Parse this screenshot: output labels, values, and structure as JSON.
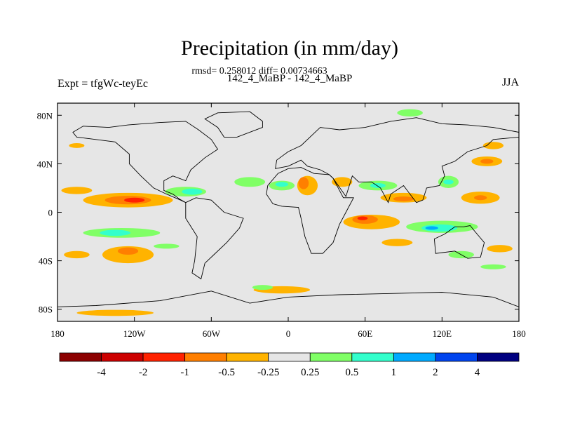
{
  "chart_data": {
    "type": "heatmap",
    "title": "Precipitation (in mm/day)",
    "stats_line": "rmsd= 0.258012 diff= 0.00734663",
    "case_line": "142_4_MaBP - 142_4_MaBP",
    "left_label": "Expt = tfgWc-teyEc",
    "right_label": "JJA",
    "lon_range": [
      -180,
      180
    ],
    "lat_range": [
      -90,
      90
    ],
    "x_ticks": [
      {
        "value": -180,
        "label": "180"
      },
      {
        "value": -120,
        "label": "120W"
      },
      {
        "value": -60,
        "label": "60W"
      },
      {
        "value": 0,
        "label": "0"
      },
      {
        "value": 60,
        "label": "60E"
      },
      {
        "value": 120,
        "label": "120E"
      },
      {
        "value": 180,
        "label": "180"
      }
    ],
    "y_ticks": [
      {
        "value": 80,
        "label": "80N"
      },
      {
        "value": 40,
        "label": "40N"
      },
      {
        "value": 0,
        "label": "0"
      },
      {
        "value": -40,
        "label": "40S"
      },
      {
        "value": -80,
        "label": "80S"
      }
    ],
    "colorbar": {
      "colors": [
        "#8b0000",
        "#cc0000",
        "#ff2200",
        "#ff7f00",
        "#ffb300",
        "#e6e6e6",
        "#80ff66",
        "#33ffcc",
        "#00aaff",
        "#0044ee",
        "#000080"
      ],
      "levels": [
        "-4",
        "-2",
        "-1",
        "-0.5",
        "-0.25",
        "0.25",
        "0.5",
        "1",
        "2",
        "4"
      ]
    },
    "anomaly_regions": [
      {
        "name": "central-pacific-itcz-dry",
        "lon": -125,
        "lat": 10,
        "rx": 35,
        "ry": 6,
        "bin": 4
      },
      {
        "name": "central-pacific-itcz-dry-core",
        "lon": -125,
        "lat": 10,
        "rx": 18,
        "ry": 3.5,
        "bin": 3
      },
      {
        "name": "central-pacific-itcz-dry-peak",
        "lon": -120,
        "lat": 10,
        "rx": 8,
        "ry": 2,
        "bin": 2
      },
      {
        "name": "east-pacific-wet",
        "lon": -80,
        "lat": 17,
        "rx": 16,
        "ry": 4,
        "bin": 6
      },
      {
        "name": "east-pacific-wet-core",
        "lon": -75,
        "lat": 17,
        "rx": 8,
        "ry": 2.5,
        "bin": 7
      },
      {
        "name": "west-pacific-itcz-dry",
        "lon": -165,
        "lat": 18,
        "rx": 12,
        "ry": 3,
        "bin": 4
      },
      {
        "name": "south-pacific-wet",
        "lon": -130,
        "lat": -17,
        "rx": 30,
        "ry": 4,
        "bin": 6
      },
      {
        "name": "south-pacific-wet-core",
        "lon": -135,
        "lat": -17,
        "rx": 12,
        "ry": 2.5,
        "bin": 7
      },
      {
        "name": "south-pacific-dry",
        "lon": -125,
        "lat": -35,
        "rx": 20,
        "ry": 7,
        "bin": 4
      },
      {
        "name": "south-pacific-dry-core",
        "lon": -125,
        "lat": -32,
        "rx": 8,
        "ry": 3,
        "bin": 3
      },
      {
        "name": "southeast-pacific-dry",
        "lon": -165,
        "lat": -35,
        "rx": 10,
        "ry": 3,
        "bin": 4
      },
      {
        "name": "southwest-pacific-wet",
        "lon": -95,
        "lat": -28,
        "rx": 10,
        "ry": 2,
        "bin": 6
      },
      {
        "name": "north-pacific-dry",
        "lon": -165,
        "lat": 55,
        "rx": 6,
        "ry": 2,
        "bin": 4
      },
      {
        "name": "subantarctic-dry",
        "lon": -5,
        "lat": -64,
        "rx": 22,
        "ry": 3,
        "bin": 4
      },
      {
        "name": "southern-ocean-dry",
        "lon": -135,
        "lat": -83,
        "rx": 30,
        "ry": 2.5,
        "bin": 4
      },
      {
        "name": "southern-ocean-wet",
        "lon": -20,
        "lat": -62,
        "rx": 8,
        "ry": 2,
        "bin": 6
      },
      {
        "name": "arctic-wet",
        "lon": 95,
        "lat": 82,
        "rx": 10,
        "ry": 3,
        "bin": 6
      },
      {
        "name": "west-africa-dry",
        "lon": 15,
        "lat": 22,
        "rx": 8,
        "ry": 8,
        "bin": 4
      },
      {
        "name": "west-africa-dry-core",
        "lon": 12,
        "lat": 24,
        "rx": 4,
        "ry": 5,
        "bin": 3
      },
      {
        "name": "sahel-wet",
        "lon": -5,
        "lat": 22,
        "rx": 10,
        "ry": 4,
        "bin": 6
      },
      {
        "name": "sahel-wet-core",
        "lon": -5,
        "lat": 23,
        "rx": 5,
        "ry": 2,
        "bin": 7
      },
      {
        "name": "atlantic-wet",
        "lon": -30,
        "lat": 25,
        "rx": 12,
        "ry": 4,
        "bin": 6
      },
      {
        "name": "arabian-dry",
        "lon": 42,
        "lat": 25,
        "rx": 8,
        "ry": 4,
        "bin": 4
      },
      {
        "name": "indian-ocean-dry",
        "lon": 65,
        "lat": -8,
        "rx": 22,
        "ry": 6,
        "bin": 4
      },
      {
        "name": "indian-ocean-dry-core",
        "lon": 60,
        "lat": -6,
        "rx": 10,
        "ry": 3.5,
        "bin": 3
      },
      {
        "name": "indian-ocean-dry-peak",
        "lon": 58,
        "lat": -5,
        "rx": 4,
        "ry": 1.5,
        "bin": 2
      },
      {
        "name": "south-asia-dry",
        "lon": 90,
        "lat": 12,
        "rx": 18,
        "ry": 4,
        "bin": 4
      },
      {
        "name": "south-asia-dry-core",
        "lon": 90,
        "lat": 11,
        "rx": 8,
        "ry": 2,
        "bin": 3
      },
      {
        "name": "india-wet",
        "lon": 70,
        "lat": 22,
        "rx": 15,
        "ry": 4,
        "bin": 6
      },
      {
        "name": "india-wet-core",
        "lon": 70,
        "lat": 22,
        "rx": 6,
        "ry": 2,
        "bin": 7
      },
      {
        "name": "maritime-continent-wet",
        "lon": 120,
        "lat": -12,
        "rx": 28,
        "ry": 5,
        "bin": 6
      },
      {
        "name": "maritime-continent-wet-core",
        "lon": 118,
        "lat": -13,
        "rx": 14,
        "ry": 3,
        "bin": 7
      },
      {
        "name": "maritime-continent-wet-peak",
        "lon": 112,
        "lat": -13,
        "rx": 5,
        "ry": 1.5,
        "bin": 8
      },
      {
        "name": "west-pacific-north-dry",
        "lon": 150,
        "lat": 12,
        "rx": 15,
        "ry": 5,
        "bin": 4
      },
      {
        "name": "west-pacific-north-dry-core",
        "lon": 150,
        "lat": 12,
        "rx": 5,
        "ry": 2,
        "bin": 3
      },
      {
        "name": "east-asia-wet",
        "lon": 125,
        "lat": 25,
        "rx": 8,
        "ry": 5,
        "bin": 6
      },
      {
        "name": "east-asia-wet-core",
        "lon": 125,
        "lat": 25,
        "rx": 4,
        "ry": 2,
        "bin": 7
      },
      {
        "name": "kuroshio-dry",
        "lon": 155,
        "lat": 42,
        "rx": 12,
        "ry": 4,
        "bin": 4
      },
      {
        "name": "kuroshio-dry-core",
        "lon": 155,
        "lat": 42,
        "rx": 5,
        "ry": 2,
        "bin": 3
      },
      {
        "name": "north-pacific-dry-east",
        "lon": 160,
        "lat": 55,
        "rx": 8,
        "ry": 3,
        "bin": 4
      },
      {
        "name": "australia-wet",
        "lon": 135,
        "lat": -35,
        "rx": 10,
        "ry": 3,
        "bin": 6
      },
      {
        "name": "south-indian-dry",
        "lon": 85,
        "lat": -25,
        "rx": 12,
        "ry": 3,
        "bin": 4
      },
      {
        "name": "east-pacific-south-dry",
        "lon": 165,
        "lat": -30,
        "rx": 10,
        "ry": 3,
        "bin": 4
      },
      {
        "name": "southern-ocean-wet-east",
        "lon": 160,
        "lat": -45,
        "rx": 10,
        "ry": 2,
        "bin": 6
      }
    ]
  }
}
